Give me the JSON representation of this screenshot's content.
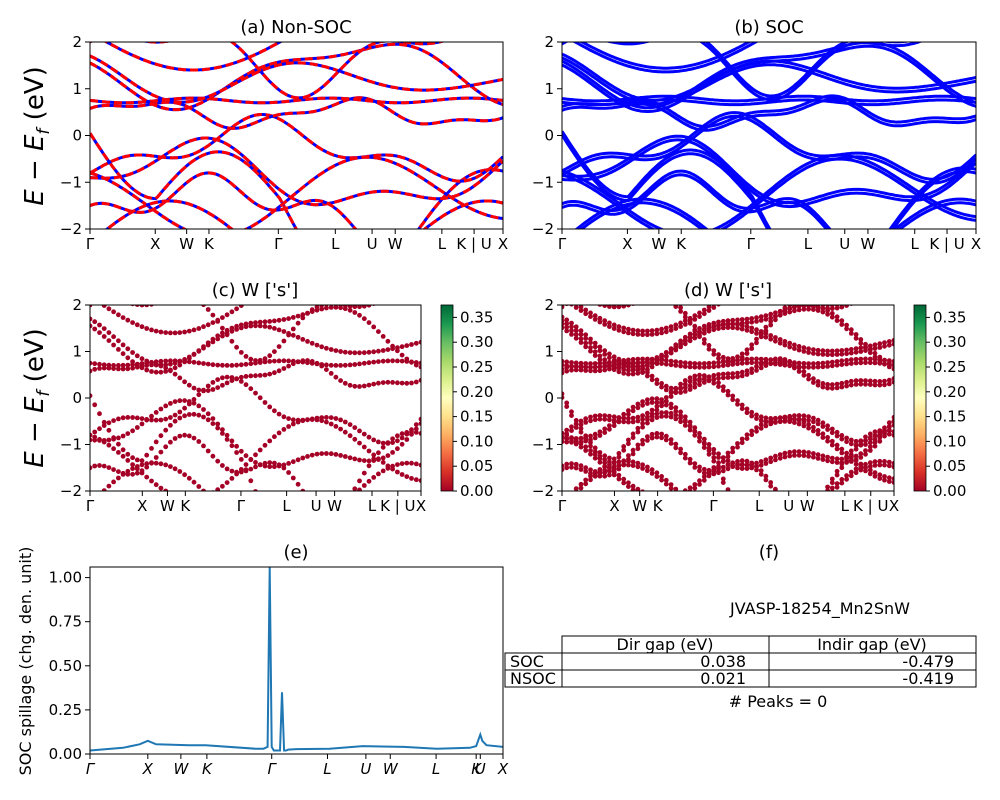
{
  "panels": {
    "a": {
      "title": "(a) Non-SOC"
    },
    "b": {
      "title": "(b) SOC"
    },
    "c": {
      "title": "(c)  W ['s']"
    },
    "d": {
      "title": "(d) W ['s']"
    },
    "e": {
      "title": "(e)"
    },
    "f": {
      "title": "(f)"
    }
  },
  "axes": {
    "band_ylabel": "E − E",
    "band_ylabel_sub": "f",
    "band_ylabel_unit": " (eV)",
    "band_ylim": [
      -2,
      2
    ],
    "band_yticks": [
      "2",
      "1",
      "0",
      "−1",
      "−2"
    ],
    "kpath_labels": [
      "Γ",
      "X",
      "W",
      "K",
      "Γ",
      "L",
      "U",
      "W",
      "L",
      "K | U",
      "X"
    ],
    "kpath_positions": [
      0,
      0.158,
      0.234,
      0.288,
      0.456,
      0.594,
      0.683,
      0.739,
      0.852,
      0.93,
      1.0
    ],
    "spill_ylabel": "SOC spillage (chg. den. unit)",
    "spill_yticks": [
      "0.00",
      "0.25",
      "0.50",
      "0.75",
      "1.00"
    ],
    "spill_ylim": [
      0,
      1.06
    ],
    "spill_kpath_labels": [
      "Γ",
      "X",
      "W",
      "K",
      "Γ",
      "L",
      "U",
      "W",
      "L",
      "K",
      "U",
      "X"
    ],
    "spill_kpath_positions": [
      0,
      0.14,
      0.22,
      0.283,
      0.44,
      0.575,
      0.668,
      0.727,
      0.838,
      0.935,
      0.945,
      1.0
    ]
  },
  "colorbar": {
    "ticks": [
      "0.00",
      "0.05",
      "0.10",
      "0.15",
      "0.20",
      "0.25",
      "0.30",
      "0.35"
    ],
    "max": 0.375
  },
  "table": {
    "title": "JVASP-18254_Mn2SnW",
    "headers": [
      "Dir gap (eV)",
      "Indir gap (eV)"
    ],
    "rows": [
      {
        "label": "SOC",
        "dir": "0.038",
        "indir": "-0.479"
      },
      {
        "label": "NSOC",
        "dir": "0.021",
        "indir": "-0.419"
      }
    ],
    "peaks": "# Peaks = 0"
  },
  "colors": {
    "nonsoc_red": "#ff0000",
    "nonsoc_blue": "#0000ff",
    "soc_blue": "#0000ff",
    "proj_dot": "#a50026",
    "spillage_line": "#1f77b4"
  },
  "chart_data": [
    {
      "type": "line",
      "panel": "a",
      "ylim": [
        -2,
        2
      ]
    },
    {
      "type": "line",
      "panel": "b",
      "ylim": [
        -2,
        2
      ]
    },
    {
      "type": "scatter",
      "panel": "c",
      "ylim": [
        -2,
        2
      ]
    },
    {
      "type": "scatter",
      "panel": "d",
      "ylim": [
        -2,
        2
      ]
    },
    {
      "type": "line",
      "panel": "e",
      "ylim": [
        0,
        1.06
      ],
      "x": [
        0,
        0.08,
        0.12,
        0.14,
        0.16,
        0.24,
        0.28,
        0.4,
        0.42,
        0.43,
        0.435,
        0.44,
        0.445,
        0.46,
        0.465,
        0.47,
        0.475,
        0.48,
        0.5,
        0.58,
        0.66,
        0.76,
        0.84,
        0.92,
        0.935,
        0.945,
        0.95,
        0.96,
        1.0
      ],
      "y": [
        0.02,
        0.035,
        0.055,
        0.075,
        0.055,
        0.05,
        0.05,
        0.03,
        0.03,
        0.04,
        1.06,
        0.04,
        0.02,
        0.02,
        0.35,
        0.02,
        0.02,
        0.025,
        0.028,
        0.03,
        0.045,
        0.04,
        0.03,
        0.035,
        0.045,
        0.11,
        0.075,
        0.05,
        0.04
      ]
    }
  ]
}
